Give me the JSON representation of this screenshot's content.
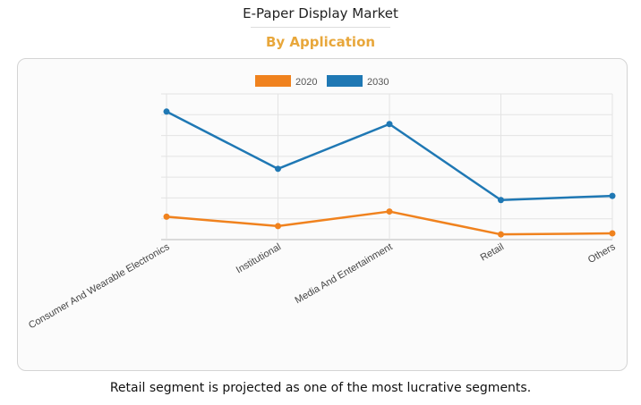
{
  "header": {
    "title": "E-Paper Display Market",
    "subtitle": "By Application"
  },
  "footer": {
    "note": "Retail segment is projected as one of the most lucrative segments."
  },
  "chart_data": {
    "type": "line",
    "categories": [
      "Consumer And Wearable Electronics",
      "Institutional",
      "Media And Entertainment",
      "Retail",
      "Others"
    ],
    "series": [
      {
        "name": "2020",
        "color": "#f0821e",
        "values": [
          22,
          13,
          27,
          5,
          6
        ]
      },
      {
        "name": "2030",
        "color": "#1f78b4",
        "values": [
          123,
          68,
          111,
          38,
          42
        ]
      }
    ],
    "ylim": [
      0,
      140
    ],
    "y_gridlines": 7,
    "y_tick_labels_shown": false,
    "legend_position": "top-center",
    "xlabel": "",
    "ylabel": ""
  }
}
